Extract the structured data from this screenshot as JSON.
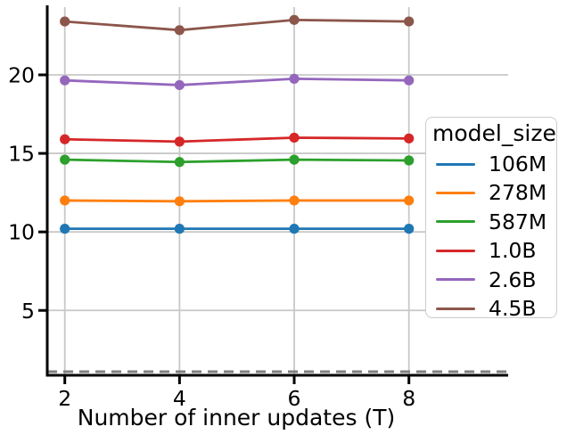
{
  "chart_data": {
    "type": "line",
    "title": "",
    "xlabel": "Number of inner updates (T)",
    "ylabel": "",
    "x": [
      2,
      4,
      6,
      8
    ],
    "xticks": [
      2,
      4,
      6,
      8
    ],
    "yticks": [
      5,
      10,
      15,
      20
    ],
    "xlim": [
      1.7,
      9.7
    ],
    "ylim": [
      0.9,
      24.3
    ],
    "grid": true,
    "legend_title": "model_size",
    "legend_position": "center right, outside plot",
    "marker": "circle",
    "series": [
      {
        "name": "106M",
        "color": "#1f77b4",
        "values": [
          10.2,
          10.2,
          10.2,
          10.2
        ]
      },
      {
        "name": "278M",
        "color": "#ff7f0e",
        "values": [
          12.0,
          11.95,
          12.0,
          12.0
        ]
      },
      {
        "name": "587M",
        "color": "#2ca02c",
        "values": [
          14.6,
          14.45,
          14.6,
          14.55
        ]
      },
      {
        "name": "1.0B",
        "color": "#d62728",
        "values": [
          15.9,
          15.75,
          16.0,
          15.95
        ]
      },
      {
        "name": "2.6B",
        "color": "#9467bd",
        "values": [
          19.65,
          19.35,
          19.75,
          19.65
        ]
      },
      {
        "name": "4.5B",
        "color": "#8c564b",
        "values": [
          23.4,
          22.85,
          23.5,
          23.4
        ]
      }
    ],
    "baseline": {
      "style": "dashed",
      "color": "#7f7f7f",
      "value": 1.1
    }
  },
  "colors": {
    "grid": "#c8c8c8",
    "axis": "#000000",
    "legend_border": "#cccccc",
    "background": "#ffffff"
  }
}
